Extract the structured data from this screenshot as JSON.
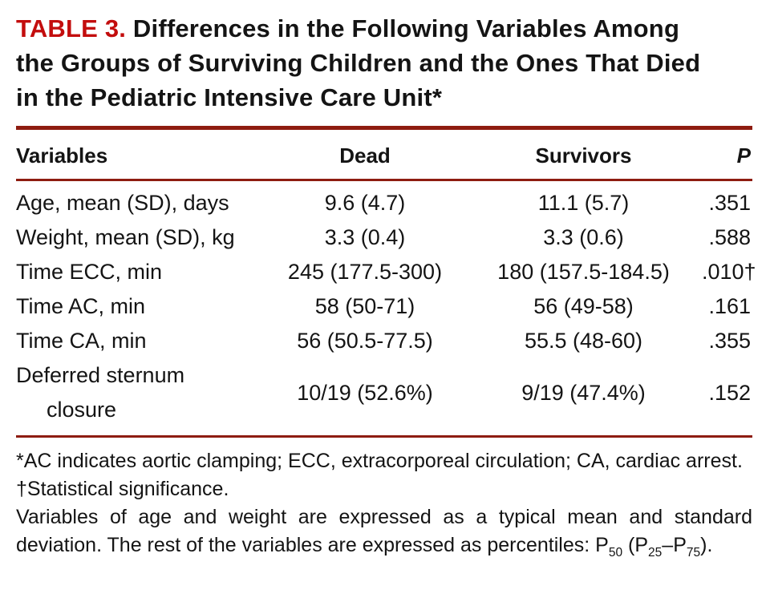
{
  "colors": {
    "accent_red": "#c30d0d",
    "rule_red": "#8e1c10",
    "text": "#141414"
  },
  "title": {
    "label": "TABLE 3.",
    "rest": "Differences in the Following Variables Among the Groups of Surviving Children and the Ones That Died in the Pediatric Intensive Care Unit*"
  },
  "table": {
    "headers": {
      "variables": "Variables",
      "dead": "Dead",
      "survivors": "Survivors",
      "p": "P"
    },
    "rows": [
      {
        "variable": "Age, mean (SD), days",
        "dead": "9.6 (4.7)",
        "survivors": "11.1 (5.7)",
        "p": ".351"
      },
      {
        "variable": "Weight, mean (SD), kg",
        "dead": "3.3 (0.4)",
        "survivors": "3.3 (0.6)",
        "p": ".588"
      },
      {
        "variable": "Time ECC, min",
        "dead": "245 (177.5-300)",
        "survivors": "180 (157.5-184.5)",
        "p": ".010†"
      },
      {
        "variable": "Time AC, min",
        "dead": "58 (50-71)",
        "survivors": "56 (49-58)",
        "p": ".161"
      },
      {
        "variable": "Time CA, min",
        "dead": "56 (50.5-77.5)",
        "survivors": "55.5 (48-60)",
        "p": ".355"
      },
      {
        "variable": "Deferred sternum",
        "variable_line2": "closure",
        "dead": "10/19 (52.6%)",
        "survivors": "9/19 (47.4%)",
        "p": ".152"
      }
    ]
  },
  "footnotes": {
    "asterisk": "*AC indicates aortic clamping; ECC, extracorporeal circulation; CA, cardiac arrest.",
    "dagger": "†Statistical significance.",
    "percentiles_pre": "Variables of age and weight are expressed as a typical mean and standard deviation. The rest of the variables are expressed as percentiles: P",
    "sub_50": "50",
    "between_1": " (P",
    "sub_25": "25",
    "between_2": "–P",
    "sub_75": "75",
    "after": ")."
  }
}
